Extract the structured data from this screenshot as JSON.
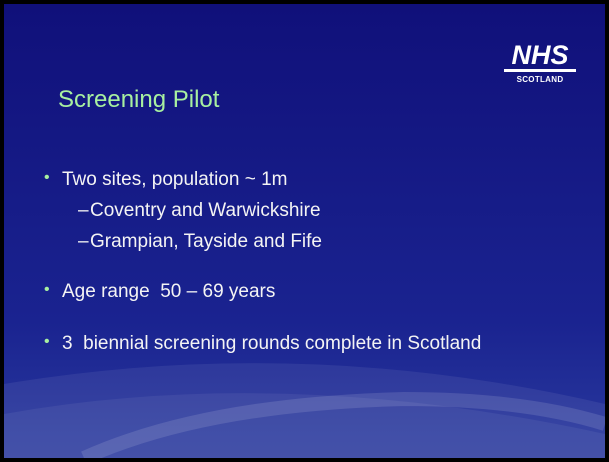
{
  "logo": {
    "name": "NHS",
    "region": "SCOTLAND"
  },
  "title": "Screening Pilot",
  "bullets": [
    {
      "text": "Two sites, population ~ 1m",
      "sub": [
        "Coventry and Warwickshire",
        "Grampian, Tayside and Fife"
      ]
    },
    {
      "text": "Age range  50 – 69 years"
    },
    {
      "text": "3  biennial screening rounds complete in Scotland"
    }
  ]
}
